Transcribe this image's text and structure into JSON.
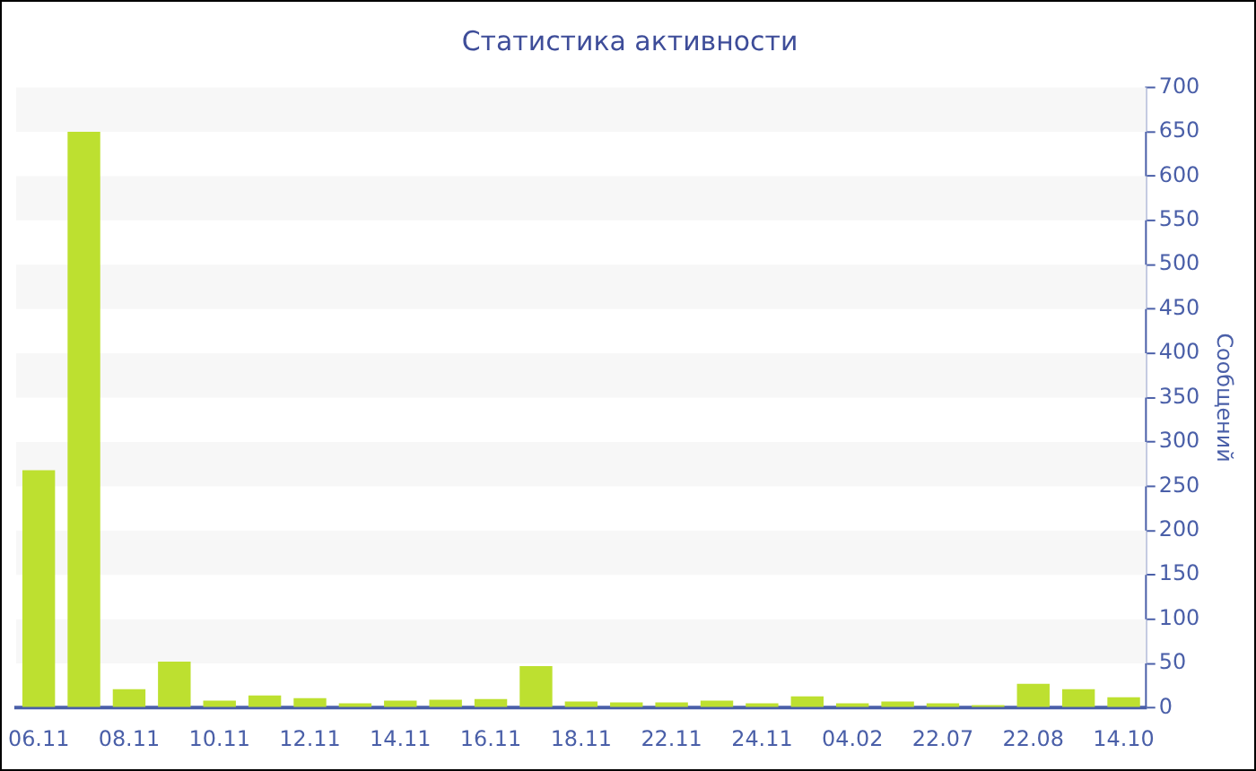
{
  "chart_data": {
    "type": "bar",
    "title": "Статистика активности",
    "ylabel": "Сообщений",
    "categories": [
      "06.11",
      null,
      "08.11",
      null,
      "10.11",
      null,
      "12.11",
      null,
      "14.11",
      null,
      "16.11",
      null,
      "18.11",
      null,
      "22.11",
      null,
      "24.11",
      null,
      "04.02",
      null,
      "22.07",
      null,
      "22.08",
      null,
      "14.10"
    ],
    "values": [
      268,
      650,
      21,
      52,
      8,
      14,
      11,
      5,
      8,
      9,
      10,
      47,
      7,
      6,
      6,
      8,
      5,
      13,
      5,
      7,
      5,
      3,
      27,
      21,
      12
    ],
    "color": "#bde030",
    "ylim": [
      0,
      700
    ],
    "yticks": [
      0,
      50,
      100,
      150,
      200,
      250,
      300,
      350,
      400,
      450,
      500,
      550,
      600,
      650,
      700
    ],
    "bands": [
      {
        "axis": "y",
        "from": 50,
        "to": 100,
        "color": "#f7f7f7"
      },
      {
        "axis": "y",
        "from": 150,
        "to": 200,
        "color": "#f7f7f7"
      },
      {
        "axis": "y",
        "from": 250,
        "to": 300,
        "color": "#f7f7f7"
      },
      {
        "axis": "y",
        "from": 350,
        "to": 400,
        "color": "#f7f7f7"
      },
      {
        "axis": "y",
        "from": 450,
        "to": 500,
        "color": "#f7f7f7"
      },
      {
        "axis": "y",
        "from": 550,
        "to": 600,
        "color": "#f7f7f7"
      },
      {
        "axis": "y",
        "from": 650,
        "to": 700,
        "color": "#f7f7f7"
      }
    ],
    "legend": false
  }
}
